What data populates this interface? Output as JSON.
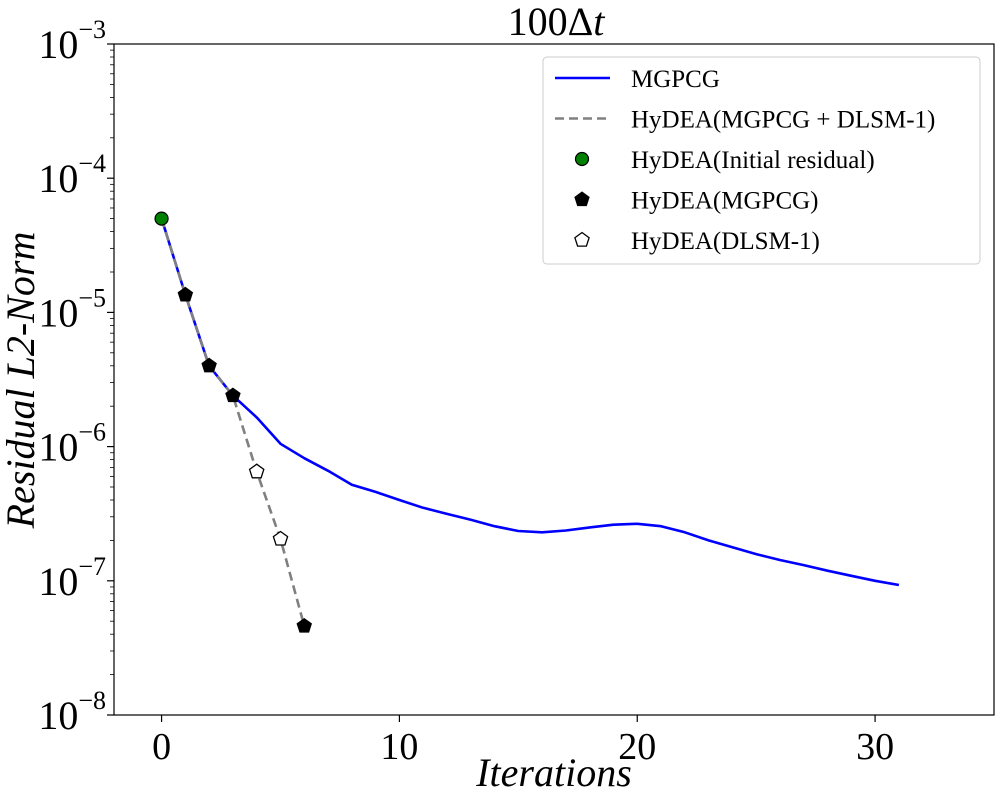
{
  "chart_data": {
    "type": "line",
    "title": "100Δt",
    "xlabel": "Iterations",
    "ylabel": "Residual L2-Norm",
    "xlim": [
      -2,
      35
    ],
    "ylim_log10": [
      -8,
      -3
    ],
    "y_scale": "log",
    "x_ticks": [
      0,
      10,
      20,
      30
    ],
    "x_tick_labels": [
      "0",
      "10",
      "20",
      "30"
    ],
    "y_ticks": [
      {
        "exp": -3,
        "base": "10",
        "exponent": "−3"
      },
      {
        "exp": -4,
        "base": "10",
        "exponent": "−4"
      },
      {
        "exp": -5,
        "base": "10",
        "exponent": "−5"
      },
      {
        "exp": -6,
        "base": "10",
        "exponent": "−6"
      },
      {
        "exp": -7,
        "base": "10",
        "exponent": "−7"
      },
      {
        "exp": -8,
        "base": "10",
        "exponent": "−8"
      }
    ],
    "legend_position": "top-right",
    "series": [
      {
        "name": "MGPCG",
        "style": "line",
        "color": "#0000ff",
        "x": [
          0,
          1,
          2,
          3,
          4,
          5,
          6,
          7,
          8,
          9,
          10,
          11,
          12,
          13,
          14,
          15,
          16,
          17,
          18,
          19,
          20,
          21,
          22,
          23,
          24,
          25,
          26,
          27,
          28,
          29,
          30,
          31
        ],
        "y": [
          5e-05,
          1.35e-05,
          4e-06,
          2.4e-06,
          1.65e-06,
          1.05e-06,
          8.2e-07,
          6.6e-07,
          5.2e-07,
          4.6e-07,
          4e-07,
          3.5e-07,
          3.15e-07,
          2.85e-07,
          2.55e-07,
          2.35e-07,
          2.3e-07,
          2.37e-07,
          2.5e-07,
          2.62e-07,
          2.66e-07,
          2.55e-07,
          2.3e-07,
          2e-07,
          1.78e-07,
          1.58e-07,
          1.43e-07,
          1.31e-07,
          1.19e-07,
          1.09e-07,
          1e-07,
          9.3e-08
        ]
      },
      {
        "name": "HyDEA(MGPCG + DLSM-1)",
        "style": "dashed",
        "color": "#808080",
        "x": [
          0,
          1,
          2,
          3,
          4,
          5,
          6
        ],
        "y": [
          5e-05,
          1.35e-05,
          4e-06,
          2.4e-06,
          6.5e-07,
          2.05e-07,
          4.6e-08
        ]
      },
      {
        "name": "HyDEA(Initial residual)",
        "style": "marker-circle",
        "color": "#008000",
        "x": [
          0
        ],
        "y": [
          5e-05
        ]
      },
      {
        "name": "HyDEA(MGPCG)",
        "style": "marker-pentagon-filled",
        "color": "#000000",
        "x": [
          1,
          2,
          3,
          6
        ],
        "y": [
          1.35e-05,
          4e-06,
          2.4e-06,
          4.6e-08
        ]
      },
      {
        "name": "HyDEA(DLSM-1)",
        "style": "marker-pentagon-open",
        "color": "#ffffff",
        "x": [
          4,
          5
        ],
        "y": [
          6.5e-07,
          2.05e-07
        ]
      }
    ]
  }
}
